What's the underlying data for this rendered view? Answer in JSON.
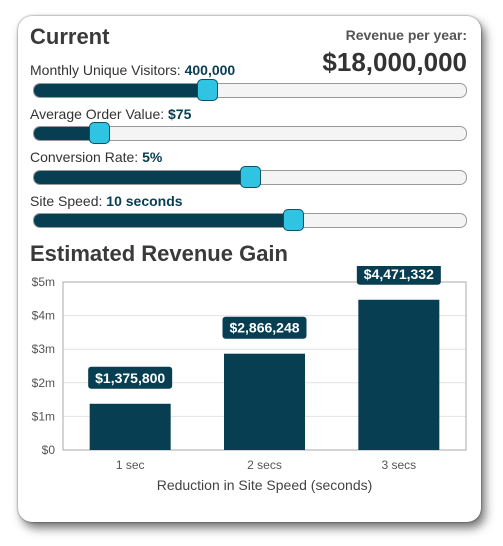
{
  "current": {
    "title": "Current",
    "revenue_label": "Revenue per year:",
    "revenue_value": "$18,000,000"
  },
  "sliders": [
    {
      "label": "Monthly Unique Visitors:",
      "value": "400,000",
      "fraction": 0.4
    },
    {
      "label": "Average Order Value:",
      "value": "$75",
      "fraction": 0.15
    },
    {
      "label": "Conversion Rate:",
      "value": "5%",
      "fraction": 0.5
    },
    {
      "label": "Site Speed:",
      "value": "10 seconds",
      "fraction": 0.6
    }
  ],
  "colors": {
    "accent": "#073e52",
    "thumb": "#2ec4e2"
  },
  "chart_title": "Estimated Revenue Gain",
  "chart_data": {
    "type": "bar",
    "categories": [
      "1 sec",
      "2 secs",
      "3 secs"
    ],
    "values": [
      1375800,
      2866248,
      4471332
    ],
    "data_labels": [
      "$1,375,800",
      "$2,866,248",
      "$4,471,332"
    ],
    "y_ticks": [
      "$0",
      "$1m",
      "$2m",
      "$3m",
      "$4m",
      "$5m"
    ],
    "ylim": [
      0,
      5000000
    ],
    "xlabel": "Reduction in Site Speed (seconds)",
    "ylabel": "",
    "grid": true
  }
}
